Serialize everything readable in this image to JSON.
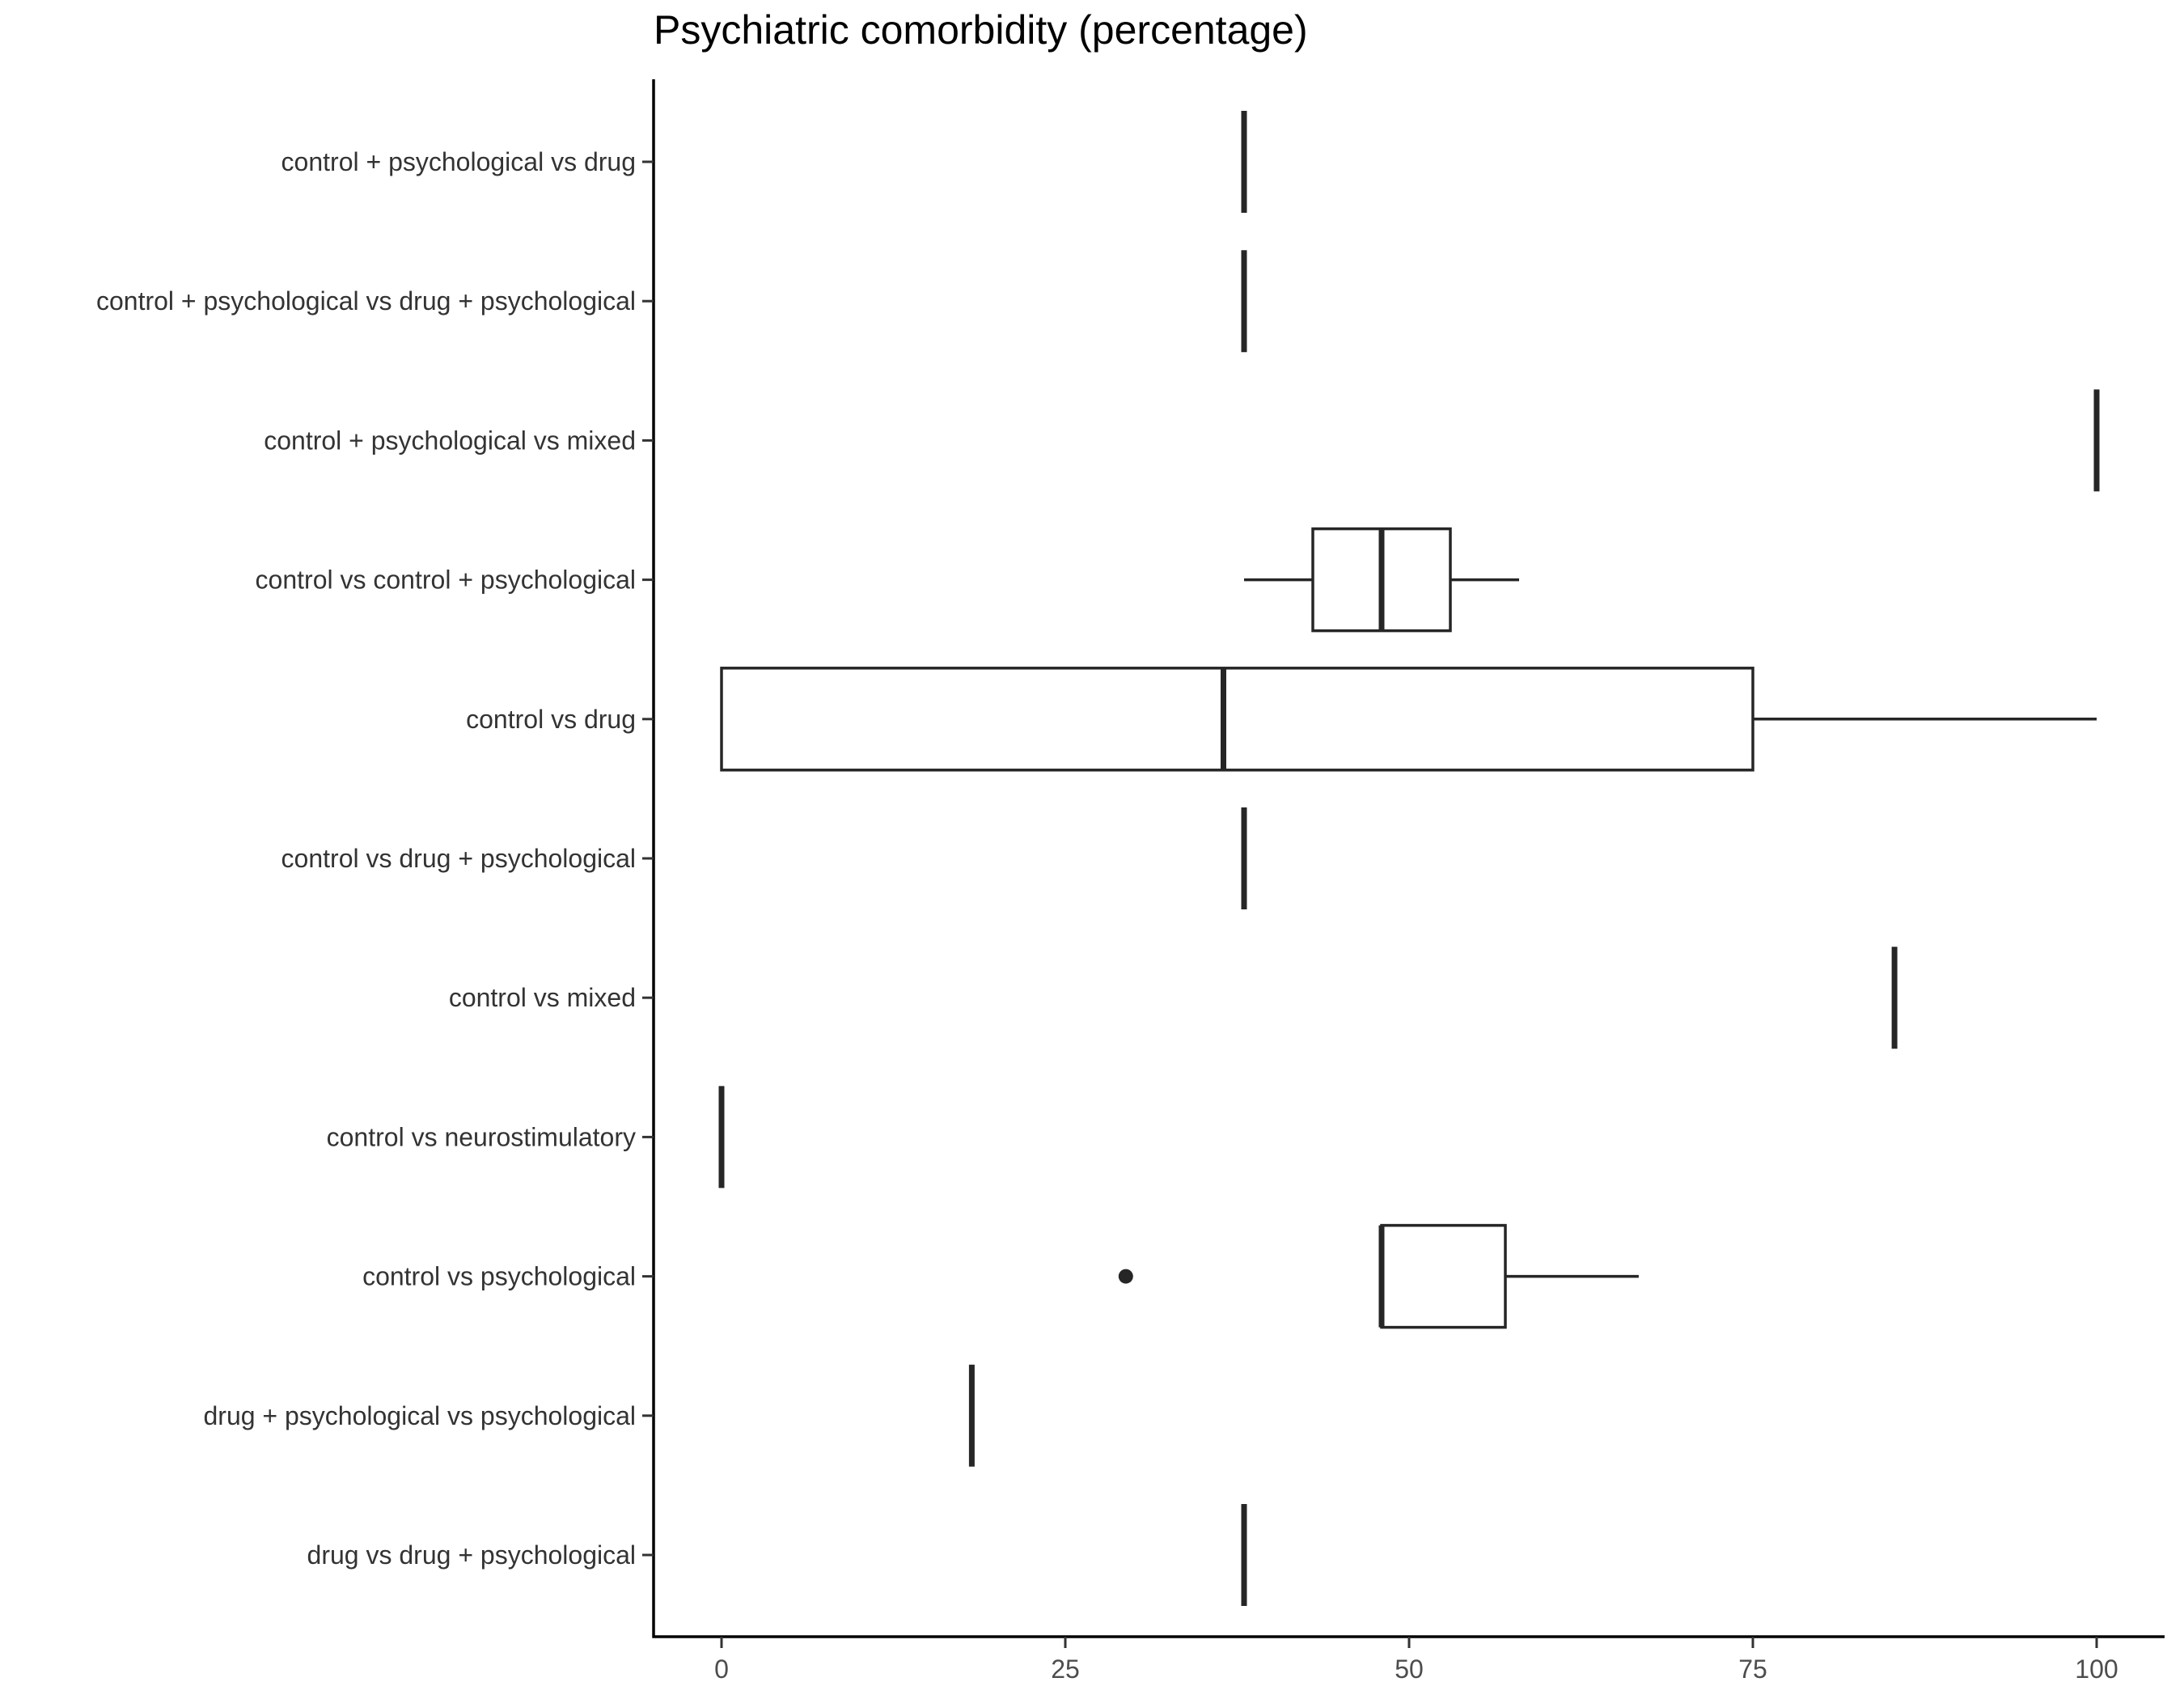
{
  "chart_data": {
    "type": "boxplot",
    "orientation": "horizontal",
    "title": "Psychiatric comorbidity (percentage)",
    "xlabel": "",
    "ylabel": "",
    "xlim": [
      0,
      100
    ],
    "xticks": [
      0,
      25,
      50,
      75,
      100
    ],
    "grid": false,
    "categories": [
      "control + psychological vs drug",
      "control + psychological vs drug + psychological",
      "control + psychological vs mixed",
      "control vs control + psychological",
      "control vs drug",
      "control vs drug + psychological",
      "control vs mixed",
      "control vs neurostimulatory",
      "control vs psychological",
      "drug + psychological vs psychological",
      "drug vs drug + psychological"
    ],
    "boxes": [
      {
        "min": 38,
        "q1": 38,
        "median": 38,
        "q3": 38,
        "max": 38,
        "outliers": []
      },
      {
        "min": 38,
        "q1": 38,
        "median": 38,
        "q3": 38,
        "max": 38,
        "outliers": []
      },
      {
        "min": 100,
        "q1": 100,
        "median": 100,
        "q3": 100,
        "max": 100,
        "outliers": []
      },
      {
        "min": 38,
        "q1": 43,
        "median": 48,
        "q3": 53,
        "max": 58,
        "outliers": []
      },
      {
        "min": 0,
        "q1": 0,
        "median": 36.5,
        "q3": 75,
        "max": 100,
        "outliers": []
      },
      {
        "min": 38,
        "q1": 38,
        "median": 38,
        "q3": 38,
        "max": 38,
        "outliers": []
      },
      {
        "min": 85.3,
        "q1": 85.3,
        "median": 85.3,
        "q3": 85.3,
        "max": 85.3,
        "outliers": []
      },
      {
        "min": 0,
        "q1": 0,
        "median": 0,
        "q3": 0,
        "max": 0,
        "outliers": []
      },
      {
        "min": 48,
        "q1": 48,
        "median": 48,
        "q3": 57,
        "max": 66.7,
        "outliers": [
          29.4
        ]
      },
      {
        "min": 18.2,
        "q1": 18.2,
        "median": 18.2,
        "q3": 18.2,
        "max": 18.2,
        "outliers": []
      },
      {
        "min": 38,
        "q1": 38,
        "median": 38,
        "q3": 38,
        "max": 38,
        "outliers": []
      }
    ],
    "colors": {
      "stroke": "#262626",
      "axis": "#000000",
      "label": "#333333",
      "tick_label": "#4d4d4d"
    }
  }
}
